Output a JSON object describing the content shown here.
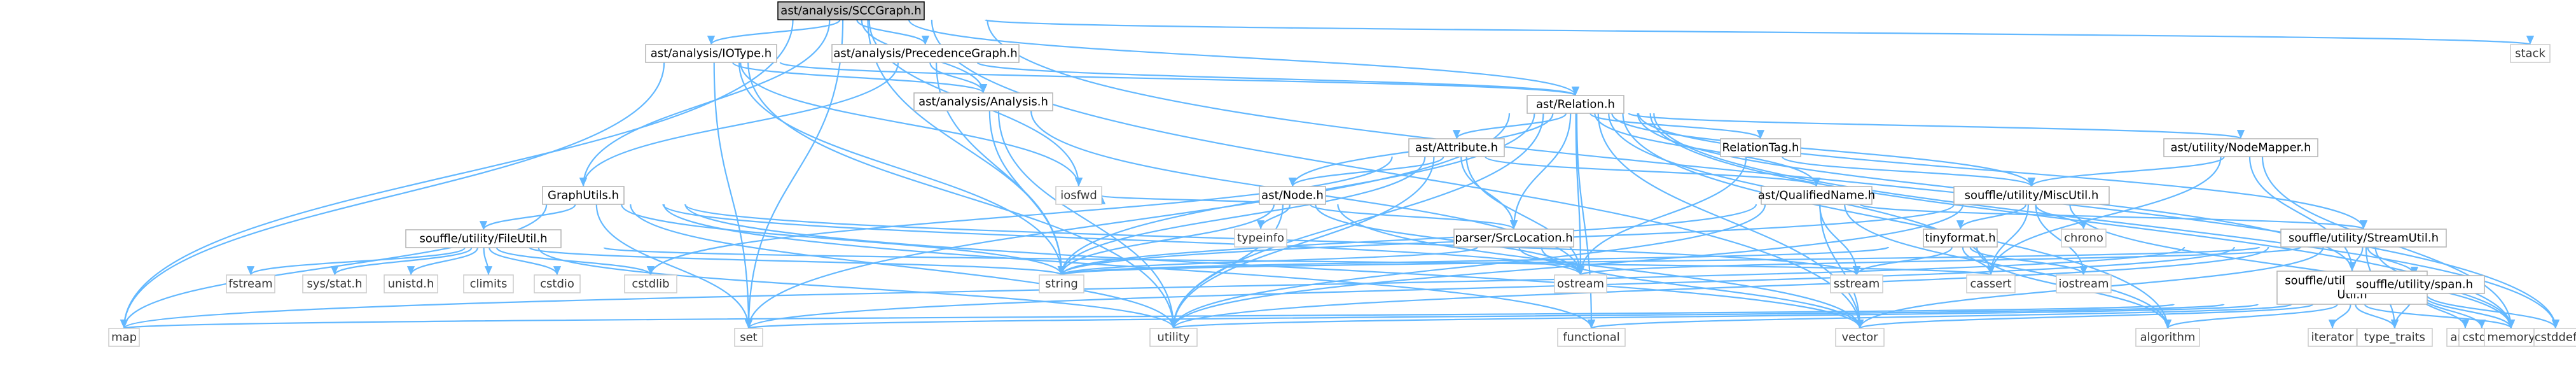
{
  "graph": {
    "root": "ast/analysis/SCCGraph.h",
    "nodes": [
      {
        "id": "sccgraph",
        "label": "ast/analysis/SCCGraph.h",
        "kind": "root"
      },
      {
        "id": "iotype",
        "label": "ast/analysis/IOType.h",
        "kind": "project"
      },
      {
        "id": "precedence",
        "label": "ast/analysis/PrecedenceGraph.h",
        "kind": "project"
      },
      {
        "id": "analysis",
        "label": "ast/analysis/Analysis.h",
        "kind": "project"
      },
      {
        "id": "relation",
        "label": "ast/Relation.h",
        "kind": "project"
      },
      {
        "id": "graphutils",
        "label": "GraphUtils.h",
        "kind": "project"
      },
      {
        "id": "attribute",
        "label": "ast/Attribute.h",
        "kind": "project"
      },
      {
        "id": "relationtag",
        "label": "RelationTag.h",
        "kind": "project"
      },
      {
        "id": "nodemapper",
        "label": "ast/utility/NodeMapper.h",
        "kind": "project"
      },
      {
        "id": "fileutil",
        "label": "souffle/utility/FileUtil.h",
        "kind": "project"
      },
      {
        "id": "node",
        "label": "ast/Node.h",
        "kind": "project"
      },
      {
        "id": "qualifiedname",
        "label": "ast/QualifiedName.h",
        "kind": "project"
      },
      {
        "id": "miscutil",
        "label": "souffle/utility/MiscUtil.h",
        "kind": "project"
      },
      {
        "id": "srclocation",
        "label": "parser/SrcLocation.h",
        "kind": "project"
      },
      {
        "id": "tinyformat",
        "label": "tinyformat.h",
        "kind": "project"
      },
      {
        "id": "streamutil",
        "label": "souffle/utility/StreamUtil.h",
        "kind": "project"
      },
      {
        "id": "containerutil",
        "label": [
          "souffle/utility/Container",
          "Util.h"
        ],
        "kind": "project"
      },
      {
        "id": "span",
        "label": "souffle/utility/span.h",
        "kind": "project"
      },
      {
        "id": "stack",
        "label": "stack",
        "kind": "system"
      },
      {
        "id": "iosfwd",
        "label": "iosfwd",
        "kind": "system"
      },
      {
        "id": "typeinfo",
        "label": "typeinfo",
        "kind": "system"
      },
      {
        "id": "chrono",
        "label": "chrono",
        "kind": "system"
      },
      {
        "id": "fstream",
        "label": "fstream",
        "kind": "system"
      },
      {
        "id": "sysstat",
        "label": "sys/stat.h",
        "kind": "system"
      },
      {
        "id": "unistd",
        "label": "unistd.h",
        "kind": "system"
      },
      {
        "id": "climits",
        "label": "climits",
        "kind": "system"
      },
      {
        "id": "cstdio",
        "label": "cstdio",
        "kind": "system"
      },
      {
        "id": "cstdlib",
        "label": "cstdlib",
        "kind": "system"
      },
      {
        "id": "string",
        "label": "string",
        "kind": "system"
      },
      {
        "id": "ostream",
        "label": "ostream",
        "kind": "system"
      },
      {
        "id": "sstream",
        "label": "sstream",
        "kind": "system"
      },
      {
        "id": "cassert",
        "label": "cassert",
        "kind": "system"
      },
      {
        "id": "iostream",
        "label": "iostream",
        "kind": "system"
      },
      {
        "id": "map",
        "label": "map",
        "kind": "system"
      },
      {
        "id": "set",
        "label": "set",
        "kind": "system"
      },
      {
        "id": "utility",
        "label": "utility",
        "kind": "system"
      },
      {
        "id": "functional",
        "label": "functional",
        "kind": "system"
      },
      {
        "id": "vector",
        "label": "vector",
        "kind": "system"
      },
      {
        "id": "algorithm",
        "label": "algorithm",
        "kind": "system"
      },
      {
        "id": "iterator",
        "label": "iterator",
        "kind": "system"
      },
      {
        "id": "type_traits",
        "label": "type_traits",
        "kind": "system"
      },
      {
        "id": "array",
        "label": "array",
        "kind": "system"
      },
      {
        "id": "cstdint",
        "label": "cstdint",
        "kind": "system"
      },
      {
        "id": "memory",
        "label": "memory",
        "kind": "system"
      },
      {
        "id": "cstddef",
        "label": "cstddef",
        "kind": "system"
      }
    ],
    "edges": [
      [
        "sccgraph",
        "iotype"
      ],
      [
        "sccgraph",
        "precedence"
      ],
      [
        "sccgraph",
        "analysis"
      ],
      [
        "sccgraph",
        "relation"
      ],
      [
        "sccgraph",
        "graphutils"
      ],
      [
        "sccgraph",
        "stack"
      ],
      [
        "sccgraph",
        "string"
      ],
      [
        "sccgraph",
        "map"
      ],
      [
        "sccgraph",
        "set"
      ],
      [
        "sccgraph",
        "vector"
      ],
      [
        "sccgraph",
        "cstddef"
      ],
      [
        "sccgraph",
        "iosfwd"
      ],
      [
        "iotype",
        "analysis"
      ],
      [
        "iotype",
        "relation"
      ],
      [
        "iotype",
        "map"
      ],
      [
        "iotype",
        "set"
      ],
      [
        "iotype",
        "string"
      ],
      [
        "iotype",
        "iosfwd"
      ],
      [
        "iotype",
        "utility"
      ],
      [
        "precedence",
        "analysis"
      ],
      [
        "precedence",
        "relation"
      ],
      [
        "precedence",
        "graphutils"
      ],
      [
        "precedence",
        "string"
      ],
      [
        "analysis",
        "string"
      ],
      [
        "analysis",
        "ostream"
      ],
      [
        "analysis",
        "utility"
      ],
      [
        "relation",
        "attribute"
      ],
      [
        "relation",
        "node"
      ],
      [
        "relation",
        "qualifiedname"
      ],
      [
        "relation",
        "relationtag"
      ],
      [
        "relation",
        "nodemapper"
      ],
      [
        "relation",
        "srclocation"
      ],
      [
        "relation",
        "containerutil"
      ],
      [
        "relation",
        "streamutil"
      ],
      [
        "relation",
        "miscutil"
      ],
      [
        "relation",
        "string"
      ],
      [
        "relation",
        "ostream"
      ],
      [
        "relation",
        "set"
      ],
      [
        "relation",
        "utility"
      ],
      [
        "relation",
        "vector"
      ],
      [
        "relation",
        "memory"
      ],
      [
        "relation",
        "cstddef"
      ],
      [
        "relation",
        "functional"
      ],
      [
        "relation",
        "algorithm"
      ],
      [
        "relation",
        "cassert"
      ],
      [
        "graphutils",
        "fileutil"
      ],
      [
        "graphutils",
        "map"
      ],
      [
        "graphutils",
        "set"
      ],
      [
        "graphutils",
        "string"
      ],
      [
        "graphutils",
        "sstream"
      ],
      [
        "graphutils",
        "utility"
      ],
      [
        "graphutils",
        "vector"
      ],
      [
        "graphutils",
        "ostream"
      ],
      [
        "graphutils",
        "functional"
      ],
      [
        "attribute",
        "node"
      ],
      [
        "attribute",
        "qualifiedname"
      ],
      [
        "attribute",
        "srclocation"
      ],
      [
        "attribute",
        "string"
      ],
      [
        "attribute",
        "ostream"
      ],
      [
        "attribute",
        "utility"
      ],
      [
        "attribute",
        "cstdlib"
      ],
      [
        "relationtag",
        "miscutil"
      ],
      [
        "relationtag",
        "ostream"
      ],
      [
        "nodemapper",
        "miscutil"
      ],
      [
        "nodemapper",
        "containerutil"
      ],
      [
        "nodemapper",
        "memory"
      ],
      [
        "nodemapper",
        "cassert"
      ],
      [
        "fileutil",
        "fstream"
      ],
      [
        "fileutil",
        "sysstat"
      ],
      [
        "fileutil",
        "unistd"
      ],
      [
        "fileutil",
        "climits"
      ],
      [
        "fileutil",
        "cstdio"
      ],
      [
        "fileutil",
        "cstdlib"
      ],
      [
        "fileutil",
        "string"
      ],
      [
        "fileutil",
        "utility"
      ],
      [
        "fileutil",
        "cassert"
      ],
      [
        "node",
        "iosfwd"
      ],
      [
        "node",
        "typeinfo"
      ],
      [
        "node",
        "srclocation"
      ],
      [
        "node",
        "string"
      ],
      [
        "node",
        "utility"
      ],
      [
        "node",
        "vector"
      ],
      [
        "node",
        "ostream"
      ],
      [
        "qualifiedname",
        "streamutil"
      ],
      [
        "qualifiedname",
        "string"
      ],
      [
        "qualifiedname",
        "vector"
      ],
      [
        "qualifiedname",
        "sstream"
      ],
      [
        "qualifiedname",
        "algorithm"
      ],
      [
        "qualifiedname",
        "utility"
      ],
      [
        "miscutil",
        "tinyformat"
      ],
      [
        "miscutil",
        "chrono"
      ],
      [
        "miscutil",
        "iostream"
      ],
      [
        "miscutil",
        "cassert"
      ],
      [
        "miscutil",
        "memory"
      ],
      [
        "miscutil",
        "utility"
      ],
      [
        "miscutil",
        "string"
      ],
      [
        "srclocation",
        "string"
      ],
      [
        "srclocation",
        "ostream"
      ],
      [
        "srclocation",
        "vector"
      ],
      [
        "tinyformat",
        "cassert"
      ],
      [
        "tinyformat",
        "iostream"
      ],
      [
        "tinyformat",
        "sstream"
      ],
      [
        "tinyformat",
        "algorithm"
      ],
      [
        "tinyformat",
        "string"
      ],
      [
        "streamutil",
        "containerutil"
      ],
      [
        "streamutil",
        "span"
      ],
      [
        "streamutil",
        "string"
      ],
      [
        "streamutil",
        "ostream"
      ],
      [
        "streamutil",
        "set"
      ],
      [
        "streamutil",
        "map"
      ],
      [
        "streamutil",
        "utility"
      ],
      [
        "streamutil",
        "vector"
      ],
      [
        "streamutil",
        "memory"
      ],
      [
        "streamutil",
        "type_traits"
      ],
      [
        "containerutil",
        "map"
      ],
      [
        "containerutil",
        "set"
      ],
      [
        "containerutil",
        "utility"
      ],
      [
        "containerutil",
        "vector"
      ],
      [
        "containerutil",
        "functional"
      ],
      [
        "containerutil",
        "iterator"
      ],
      [
        "containerutil",
        "memory"
      ],
      [
        "containerutil",
        "type_traits"
      ],
      [
        "containerutil",
        "algorithm"
      ],
      [
        "span",
        "array"
      ],
      [
        "span",
        "cstdint"
      ],
      [
        "span",
        "cstddef"
      ],
      [
        "span",
        "type_traits"
      ],
      [
        "span",
        "memory"
      ]
    ]
  }
}
